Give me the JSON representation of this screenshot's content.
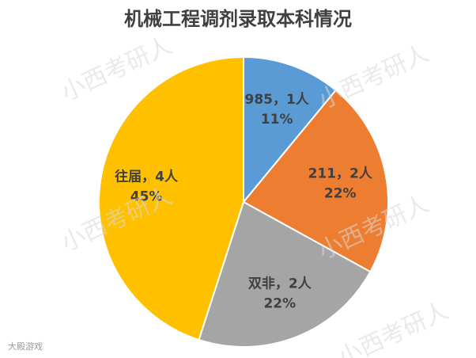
{
  "chart_data": {
    "type": "pie",
    "title": "机械工程调剂录取本科情况",
    "categories": [
      "985，1人",
      "211，2人",
      "双非，2人",
      "往届，4人"
    ],
    "values": [
      11,
      22,
      22,
      45
    ],
    "value_labels": [
      "11%",
      "22%",
      "22%",
      "45%"
    ],
    "colors": [
      "#5b9bd5",
      "#ed7d31",
      "#a5a5a5",
      "#ffc000"
    ]
  },
  "watermark": "小西考研人",
  "logo": "大殿游戏"
}
